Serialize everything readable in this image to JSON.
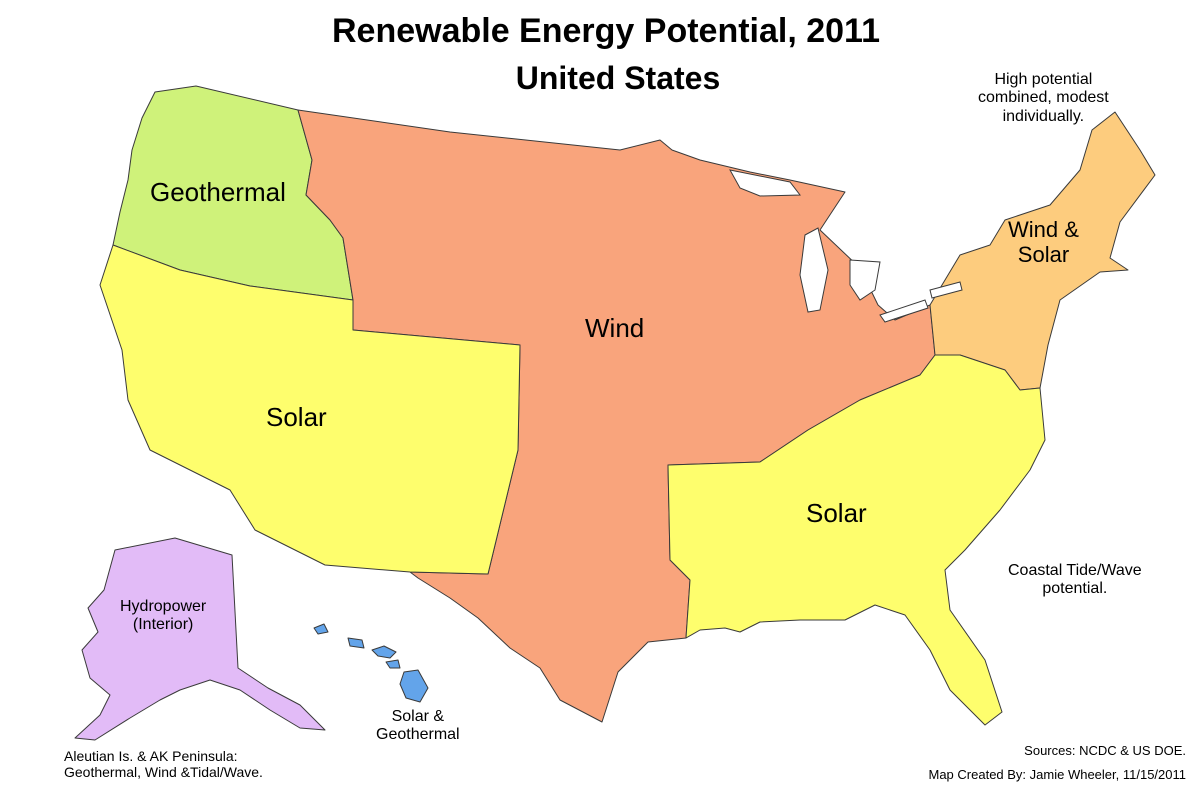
{
  "title": "Renewable Energy Potential, 2011",
  "subtitle": "United States",
  "regions": {
    "geothermal": {
      "label": "Geothermal",
      "color": "#cff27a"
    },
    "wind": {
      "label": "Wind",
      "color": "#f9a47c"
    },
    "wind_solar": {
      "label_line1": "Wind &",
      "label_line2": "Solar",
      "color": "#fdcc7e"
    },
    "solar_west": {
      "label": "Solar",
      "color": "#fefe6d"
    },
    "solar_southeast": {
      "label": "Solar",
      "color": "#fefe6d"
    },
    "alaska": {
      "label_line1": "Hydropower",
      "label_line2": "(Interior)",
      "color": "#e2bbf7"
    },
    "hawaii": {
      "color": "#63a4ea"
    }
  },
  "notes": {
    "northeast_line1": "High potential",
    "northeast_line2": "combined, modest",
    "northeast_line3": "individually.",
    "coastal_line1": "Coastal Tide/Wave",
    "coastal_line2": "potential.",
    "hawaii_line1": "Solar &",
    "hawaii_line2": "Geothermal",
    "aleutian_line1": "Aleutian Is. & AK Peninsula:",
    "aleutian_line2": "Geothermal, Wind &Tidal/Wave."
  },
  "credits": {
    "sources": "Sources: NCDC & US DOE.",
    "author": "Map Created By: Jamie Wheeler, 11/15/2011"
  }
}
